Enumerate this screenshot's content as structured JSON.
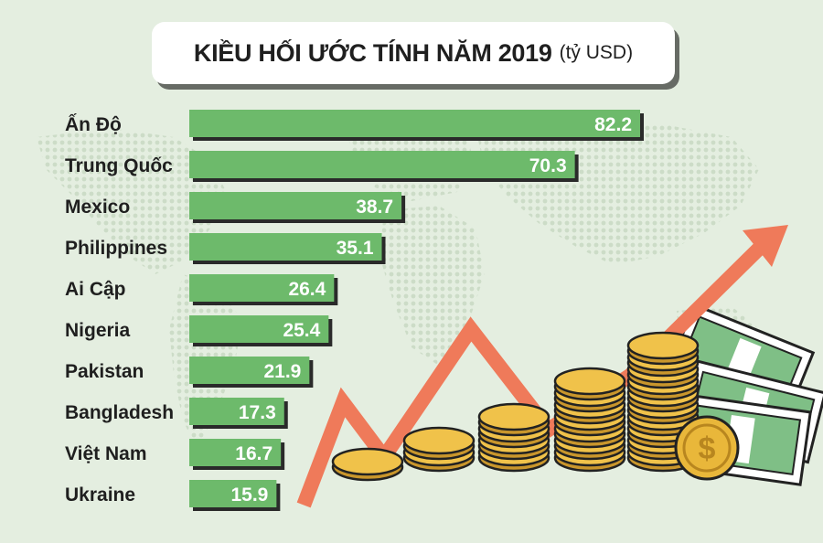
{
  "title": "KIỀU HỐI ƯỚC TÍNH NĂM 2019",
  "unit": "(tỷ USD)",
  "colors": {
    "bar": "#6dba6b",
    "bar_shadow": "#2a2a2a",
    "label": "#1f1f1f",
    "highlight_label": "#ef7a5a",
    "background": "#e4eee0"
  },
  "chart_data": {
    "type": "bar",
    "orientation": "horizontal",
    "title": "KIỀU HỐI ƯỚC TÍNH NĂM 2019",
    "unit": "(tỷ USD)",
    "categories": [
      "Ấn Độ",
      "Trung Quốc",
      "Mexico",
      "Philippines",
      "Ai Cập",
      "Nigeria",
      "Pakistan",
      "Bangladesh",
      "Việt Nam",
      "Ukraine"
    ],
    "values": [
      82.2,
      70.3,
      38.7,
      35.1,
      26.4,
      25.4,
      21.9,
      17.3,
      16.7,
      15.9
    ],
    "highlight": "Việt Nam",
    "xlim": [
      0,
      82.2
    ],
    "grid": false,
    "legend": "none"
  }
}
